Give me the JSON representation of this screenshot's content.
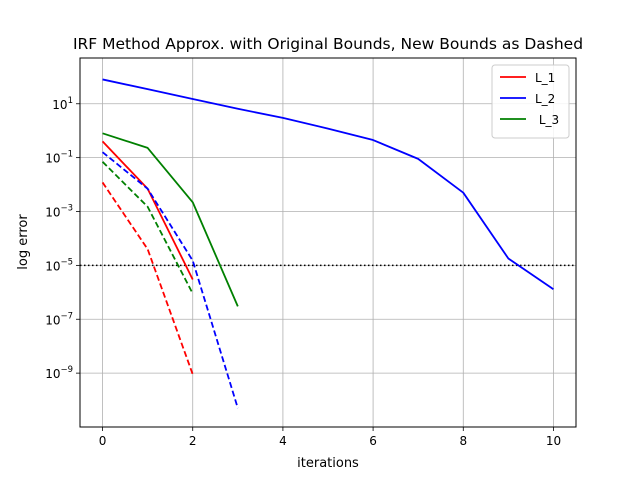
{
  "chart_data": {
    "type": "line",
    "title": "IRF Method Approx. with Original Bounds, New Bounds as Dashed",
    "xlabel": "iterations",
    "ylabel": "log error",
    "x_scale": "linear",
    "y_scale": "log",
    "xlim": [
      -0.5,
      10.5
    ],
    "ylim": [
      1e-11,
      500.0
    ],
    "x_ticks": [
      0,
      2,
      4,
      6,
      8,
      10
    ],
    "x_tick_labels": [
      "0",
      "2",
      "4",
      "6",
      "8",
      "10"
    ],
    "y_ticks": [
      1e-09,
      1e-07,
      1e-05,
      0.001,
      0.1,
      10.0
    ],
    "y_tick_labels": [
      {
        "base": "10",
        "exp": "−9"
      },
      {
        "base": "10",
        "exp": "−7"
      },
      {
        "base": "10",
        "exp": "−5"
      },
      {
        "base": "10",
        "exp": "−3"
      },
      {
        "base": "10",
        "exp": "−1"
      },
      {
        "base": "10",
        "exp": "1"
      }
    ],
    "grid": true,
    "legend_position": "top-right",
    "reference_line": {
      "y": 1e-05,
      "style": "dotted",
      "color": "#000000"
    },
    "series": [
      {
        "name": "L_1",
        "color": "#ff0000",
        "style": "solid",
        "x": [
          0,
          1,
          2
        ],
        "y": [
          0.4,
          0.007,
          3e-06
        ],
        "legend": true
      },
      {
        "name": "L_2",
        "color": "#0000ff",
        "style": "solid",
        "x": [
          0,
          1,
          2,
          3,
          4,
          5,
          6,
          7,
          8,
          9,
          10
        ],
        "y": [
          80,
          35,
          15,
          6.5,
          3,
          1.2,
          0.45,
          0.09,
          0.005,
          1.8e-05,
          1.3e-06
        ],
        "legend": true
      },
      {
        "name": " L_3",
        "color": "#008000",
        "style": "solid",
        "x": [
          0,
          1,
          2,
          3
        ],
        "y": [
          0.8,
          0.23,
          0.0022,
          3e-07
        ],
        "legend": true
      },
      {
        "color": "#ff0000",
        "style": "dashed",
        "x": [
          0,
          1,
          2
        ],
        "y": [
          0.012,
          4e-05,
          9e-10
        ],
        "legend": false
      },
      {
        "color": "#0000ff",
        "style": "dashed",
        "x": [
          0,
          1,
          2,
          3
        ],
        "y": [
          0.16,
          0.007,
          1.5e-05,
          5e-11
        ],
        "legend": false
      },
      {
        "color": "#008000",
        "style": "dashed",
        "x": [
          0,
          1,
          2
        ],
        "y": [
          0.07,
          0.0015,
          9e-07
        ],
        "legend": false
      }
    ]
  }
}
